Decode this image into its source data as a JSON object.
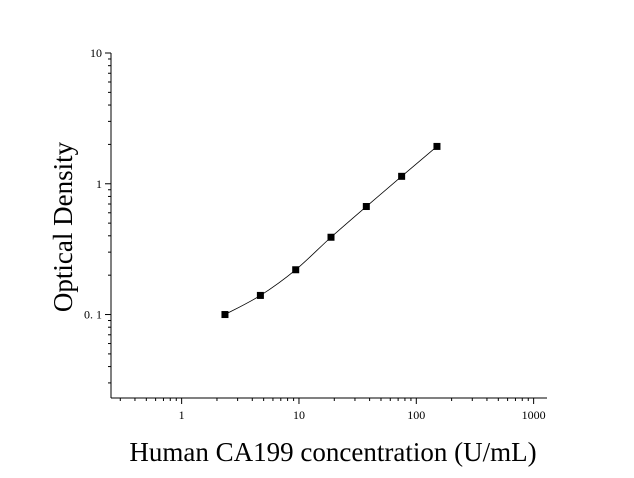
{
  "chart_data": {
    "type": "scatter",
    "xlabel": "Human CA199 concentration (U/mL)",
    "ylabel": "Optical Density",
    "x_scale": "log",
    "y_scale": "log",
    "xlim": [
      0.25,
      1300
    ],
    "ylim": [
      0.023,
      10
    ],
    "x_ticks": [
      1,
      10,
      100,
      1000
    ],
    "x_tick_labels": [
      "1",
      "10",
      "100",
      "1000"
    ],
    "y_ticks": [
      0.1,
      1,
      10
    ],
    "y_tick_labels": [
      "0. 1",
      "1",
      "10"
    ],
    "grid": false,
    "legend": "none",
    "marker": "square",
    "fit_line": "smooth curve through points",
    "series": [
      {
        "x": [
          2.34,
          4.69,
          9.38,
          18.75,
          37.5,
          75,
          150
        ],
        "y": [
          0.1,
          0.14,
          0.22,
          0.39,
          0.67,
          1.14,
          1.93
        ]
      }
    ],
    "colors": {
      "points": "#000000",
      "line": "#000000",
      "axes": "#000000"
    }
  }
}
